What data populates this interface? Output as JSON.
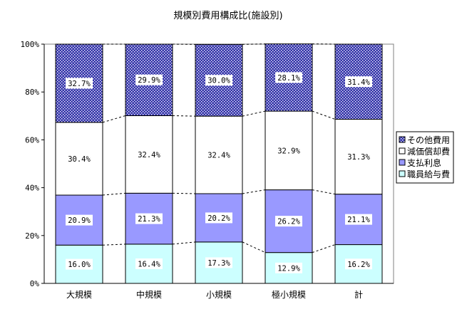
{
  "chart_data": {
    "type": "bar",
    "stacked": true,
    "title": "規模別費用構成比(施設別)",
    "categories": [
      "大規模",
      "中規模",
      "小規模",
      "極小規模",
      "計"
    ],
    "series": [
      {
        "name": "職員給与費",
        "values": [
          16.0,
          16.4,
          17.3,
          12.9,
          16.2
        ],
        "labels": [
          "16.0%",
          "16.4%",
          "17.3%",
          "12.9%",
          "16.2%"
        ],
        "color": "#ccffff"
      },
      {
        "name": "支払利息",
        "values": [
          20.9,
          21.3,
          20.2,
          26.2,
          21.1
        ],
        "labels": [
          "20.9%",
          "21.3%",
          "20.2%",
          "26.2%",
          "21.1%"
        ],
        "color": "#9999ff"
      },
      {
        "name": "減価償却費",
        "values": [
          30.4,
          32.4,
          32.4,
          32.9,
          31.3
        ],
        "labels": [
          "30.4%",
          "32.4%",
          "32.4%",
          "32.9%",
          "31.3%"
        ],
        "color": "#ffffff"
      },
      {
        "name": "その他費用",
        "values": [
          32.7,
          29.9,
          30.0,
          28.1,
          31.4
        ],
        "labels": [
          "32.7%",
          "29.9%",
          "30.0%",
          "28.1%",
          "31.4%"
        ],
        "color": "#3333aa"
      }
    ],
    "yticks": [
      "0%",
      "20%",
      "40%",
      "60%",
      "80%",
      "100%"
    ],
    "ylim": [
      0,
      100
    ],
    "grid": false,
    "legend": "right",
    "series_lines": "dashed"
  }
}
